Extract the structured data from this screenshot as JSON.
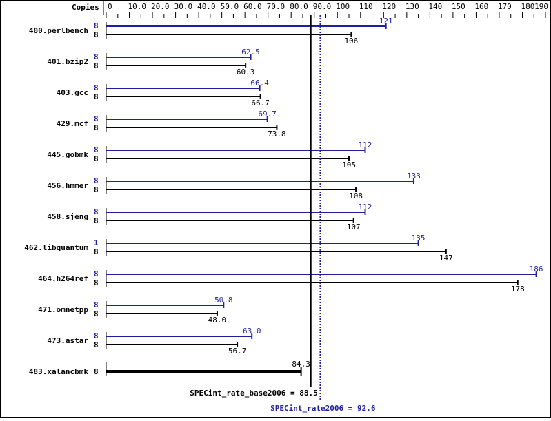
{
  "chart_data": {
    "type": "bar",
    "orientation": "horizontal",
    "copies_header": "Copies",
    "xlim": [
      0,
      190
    ],
    "ticks": [
      "0",
      "10.0",
      "20.0",
      "30.0",
      "40.0",
      "50.0",
      "60.0",
      "70.0",
      "80.0",
      "90.0",
      "100",
      "110",
      "120",
      "130",
      "140",
      "150",
      "160",
      "170",
      "180",
      "190"
    ],
    "colors": {
      "peak": "#1f1f9f",
      "base": "#000000"
    },
    "benchmarks": [
      {
        "name": "400.perlbench",
        "peak_copies": "8",
        "peak": 121,
        "peak_label": "121",
        "base_copies": "8",
        "base": 106,
        "base_label": "106"
      },
      {
        "name": "401.bzip2",
        "peak_copies": "8",
        "peak": 62.5,
        "peak_label": "62.5",
        "base_copies": "8",
        "base": 60.3,
        "base_label": "60.3"
      },
      {
        "name": "403.gcc",
        "peak_copies": "8",
        "peak": 66.4,
        "peak_label": "66.4",
        "base_copies": "8",
        "base": 66.7,
        "base_label": "66.7"
      },
      {
        "name": "429.mcf",
        "peak_copies": "8",
        "peak": 69.7,
        "peak_label": "69.7",
        "base_copies": "8",
        "base": 73.8,
        "base_label": "73.8"
      },
      {
        "name": "445.gobmk",
        "peak_copies": "8",
        "peak": 112,
        "peak_label": "112",
        "base_copies": "8",
        "base": 105,
        "base_label": "105"
      },
      {
        "name": "456.hmmer",
        "peak_copies": "8",
        "peak": 133,
        "peak_label": "133",
        "base_copies": "8",
        "base": 108,
        "base_label": "108"
      },
      {
        "name": "458.sjeng",
        "peak_copies": "8",
        "peak": 112,
        "peak_label": "112",
        "base_copies": "8",
        "base": 107,
        "base_label": "107"
      },
      {
        "name": "462.libquantum",
        "peak_copies": "1",
        "peak": 135,
        "peak_label": "135",
        "base_copies": "8",
        "base": 147,
        "base_label": "147"
      },
      {
        "name": "464.h264ref",
        "peak_copies": "8",
        "peak": 186,
        "peak_label": "186",
        "base_copies": "8",
        "base": 178,
        "base_label": "178"
      },
      {
        "name": "471.omnetpp",
        "peak_copies": "8",
        "peak": 50.8,
        "peak_label": "50.8",
        "base_copies": "8",
        "base": 48.0,
        "base_label": "48.0"
      },
      {
        "name": "473.astar",
        "peak_copies": "8",
        "peak": 63.0,
        "peak_label": "63.0",
        "base_copies": "8",
        "base": 56.7,
        "base_label": "56.7"
      },
      {
        "name": "483.xalancbmk",
        "base_copies": "8",
        "base": 84.3,
        "base_label": "84.3"
      }
    ],
    "base_metric": {
      "label": "SPECint_rate_base2006 = 88.5",
      "value": 88.5
    },
    "peak_metric": {
      "label": "SPECint_rate2006 = 92.6",
      "value": 92.6
    }
  }
}
